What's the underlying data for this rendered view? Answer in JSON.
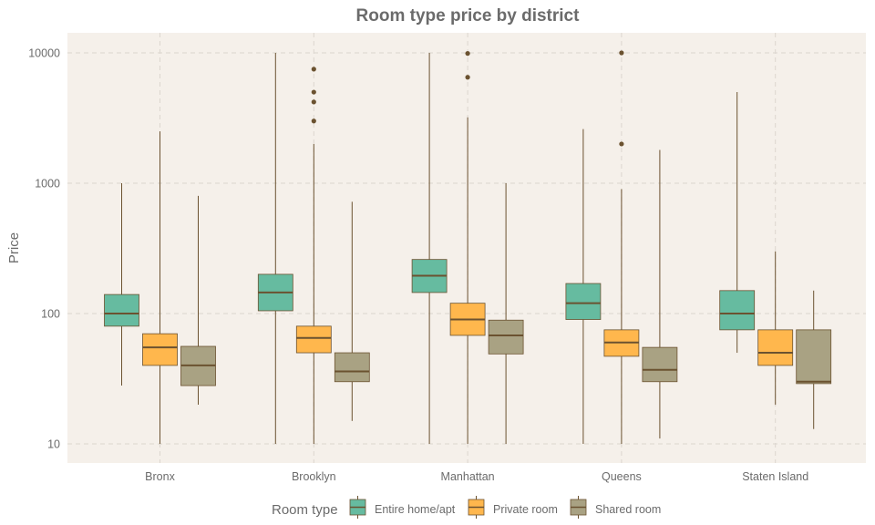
{
  "chart_data": {
    "type": "boxplot",
    "title": "Room type price by district",
    "xlabel": "",
    "ylabel": "Price",
    "yscale": "log10",
    "ylim": [
      7,
      14000
    ],
    "y_ticks": [
      10,
      100,
      1000,
      10000
    ],
    "y_tick_labels": [
      "10",
      "100",
      "1000",
      "10000"
    ],
    "grid": true,
    "legend": {
      "title": "Room type",
      "position": "bottom"
    },
    "categories": [
      "Bronx",
      "Brooklyn",
      "Manhattan",
      "Queens",
      "Staten Island"
    ],
    "series": [
      {
        "name": "Entire home/apt",
        "color": "#66BBA0",
        "boxes": [
          {
            "min": 28,
            "q1": 80,
            "median": 100,
            "q3": 140,
            "max": 1000,
            "outliers": []
          },
          {
            "min": 10,
            "q1": 105,
            "median": 145,
            "q3": 200,
            "max": 10000,
            "outliers": []
          },
          {
            "min": 10,
            "q1": 145,
            "median": 195,
            "q3": 260,
            "max": 10000,
            "outliers": []
          },
          {
            "min": 10,
            "q1": 90,
            "median": 120,
            "q3": 170,
            "max": 2600,
            "outliers": []
          },
          {
            "min": 50,
            "q1": 75,
            "median": 100,
            "q3": 150,
            "max": 5000,
            "outliers": []
          }
        ]
      },
      {
        "name": "Private room",
        "color": "#FFB74D",
        "boxes": [
          {
            "min": 10,
            "q1": 40,
            "median": 55,
            "q3": 70,
            "max": 2500,
            "outliers": []
          },
          {
            "min": 10,
            "q1": 50,
            "median": 65,
            "q3": 80,
            "max": 2000,
            "outliers": [
              3000,
              4200,
              5000,
              7500
            ]
          },
          {
            "min": 10,
            "q1": 68,
            "median": 90,
            "q3": 120,
            "max": 3200,
            "outliers": [
              6500,
              9900
            ]
          },
          {
            "min": 10,
            "q1": 47,
            "median": 60,
            "q3": 75,
            "max": 900,
            "outliers": [
              2000,
              10000
            ]
          },
          {
            "min": 20,
            "q1": 40,
            "median": 50,
            "q3": 75,
            "max": 300,
            "outliers": []
          }
        ]
      },
      {
        "name": "Shared room",
        "color": "#A9A283",
        "boxes": [
          {
            "min": 20,
            "q1": 28,
            "median": 40,
            "q3": 56,
            "max": 800,
            "outliers": []
          },
          {
            "min": 15,
            "q1": 30,
            "median": 36,
            "q3": 50,
            "max": 720,
            "outliers": []
          },
          {
            "min": 10,
            "q1": 49,
            "median": 68,
            "q3": 89,
            "max": 1000,
            "outliers": []
          },
          {
            "min": 11,
            "q1": 30,
            "median": 37,
            "q3": 55,
            "max": 1800,
            "outliers": []
          },
          {
            "min": 13,
            "q1": 29,
            "median": 30,
            "q3": 75,
            "max": 150,
            "outliers": []
          }
        ]
      }
    ]
  },
  "colors": {
    "panel_bg": "#F5F0EA",
    "grid": "#DCD6CF",
    "whisker": "#6B5230",
    "median": "#6B5230",
    "text": "#6b6b6b"
  }
}
